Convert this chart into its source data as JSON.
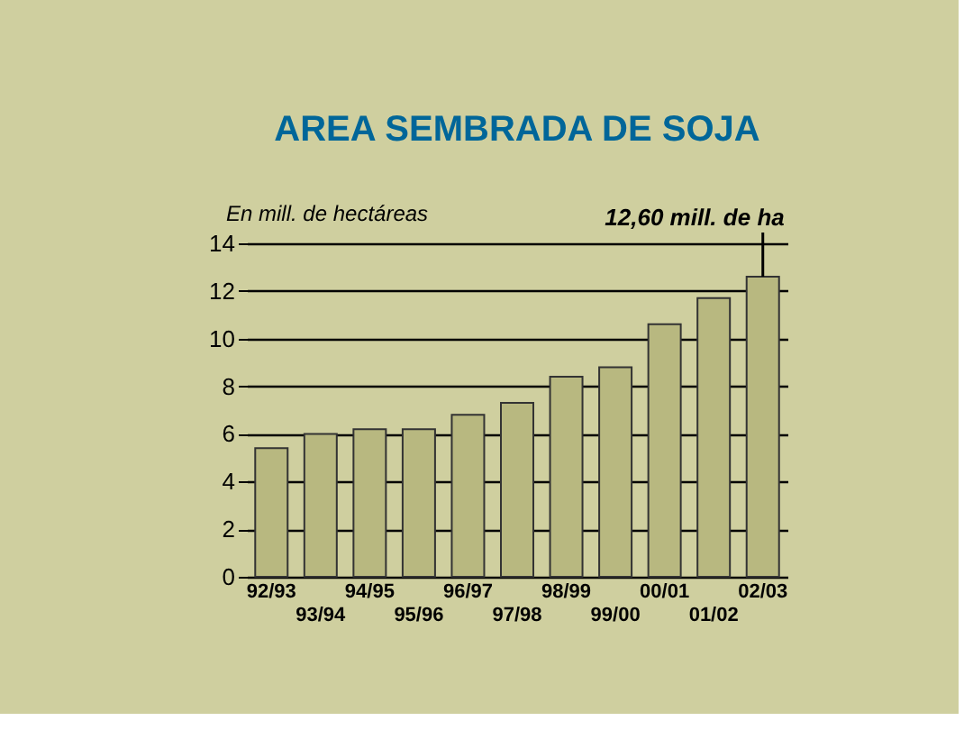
{
  "chart_data": {
    "type": "bar",
    "title": "AREA SEMBRADA DE SOJA",
    "ylabel": "En mill. de hectáreas",
    "categories": [
      "92/93",
      "93/94",
      "94/95",
      "95/96",
      "96/97",
      "97/98",
      "98/99",
      "99/00",
      "00/01",
      "01/02",
      "02/03"
    ],
    "values": [
      5.4,
      6.0,
      6.2,
      6.2,
      6.8,
      7.3,
      8.4,
      8.8,
      10.6,
      11.7,
      12.6
    ],
    "color": "#b8b880",
    "ylim": [
      0,
      14
    ],
    "yticks": [
      0,
      2,
      4,
      6,
      8,
      10,
      12,
      14
    ],
    "grid": "y",
    "annotations": [
      {
        "text": "12,60 mill. de ha",
        "x": "02/03",
        "y": 12.6
      }
    ]
  }
}
